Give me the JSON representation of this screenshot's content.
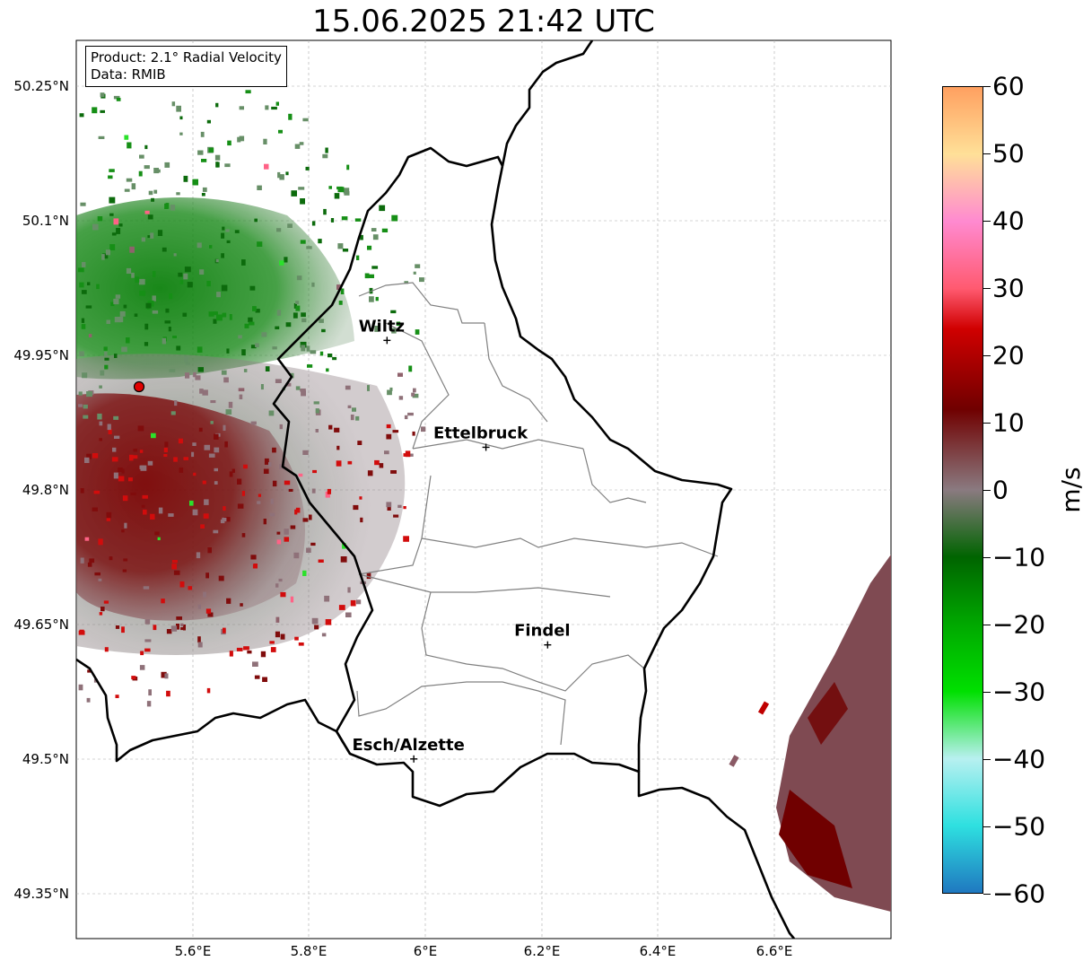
{
  "title": "15.06.2025 21:42 UTC",
  "info": {
    "product": "Product: 2.1° Radial Velocity",
    "data_source": "Data: RMIB"
  },
  "map": {
    "lon_range": [
      5.4,
      6.8
    ],
    "lat_range": [
      49.3,
      50.3
    ],
    "lat_ticks": [
      "50.25°N",
      "50.1°N",
      "49.95°N",
      "49.8°N",
      "49.65°N",
      "49.5°N",
      "49.35°N"
    ],
    "lon_ticks": [
      "5.6°E",
      "5.8°E",
      "6°E",
      "6.2°E",
      "6.4°E",
      "6.6°E"
    ],
    "gridlines": true,
    "radar_site": {
      "lon": 5.505,
      "lat": 49.914
    },
    "cities": [
      {
        "name": "Wiltz",
        "lon": 5.934,
        "lat": 49.966
      },
      {
        "name": "Ettelbruck",
        "lon": 6.104,
        "lat": 49.847
      },
      {
        "name": "Findel",
        "lon": 6.21,
        "lat": 49.627
      },
      {
        "name": "Esch/Alzette",
        "lon": 5.98,
        "lat": 49.5
      }
    ]
  },
  "colorbar": {
    "unit": "m/s",
    "range": [
      -60,
      60
    ],
    "ticks": [
      "60",
      "50",
      "40",
      "30",
      "20",
      "10",
      "0",
      "−10",
      "−20",
      "−30",
      "−40",
      "−50",
      "−60"
    ],
    "colors": {
      "c_neg60": "#1f78c0",
      "c_neg50": "#2ee0e0",
      "c_neg40": "#b8f0f0",
      "c_neg30": "#00e000",
      "c_neg20": "#00a800",
      "c_neg10": "#006400",
      "c_0": "#8a7a80",
      "c_10": "#700000",
      "c_20": "#d00000",
      "c_30": "#ff5a70",
      "c_40": "#ff8ad0",
      "c_50": "#ffe098",
      "c_60": "#ffa060"
    }
  }
}
